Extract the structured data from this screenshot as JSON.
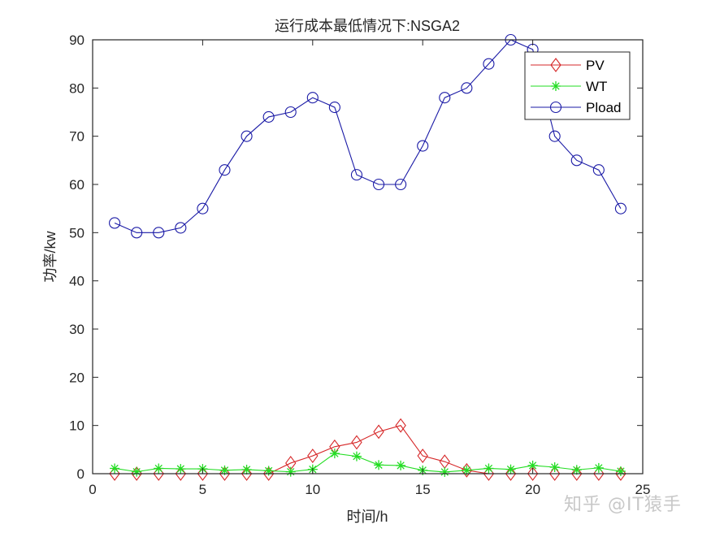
{
  "chart_data": {
    "type": "line",
    "title": "运行成本最低情况下:NSGA2",
    "xlabel": "时间/h",
    "ylabel": "功率/kw",
    "xlim": [
      0,
      25
    ],
    "ylim": [
      0,
      90
    ],
    "xticks": [
      0,
      5,
      10,
      15,
      20,
      25
    ],
    "yticks": [
      0,
      10,
      20,
      30,
      40,
      50,
      60,
      70,
      80,
      90
    ],
    "grid": false,
    "legend_position": "top-right (inside)",
    "x": [
      1,
      2,
      3,
      4,
      5,
      6,
      7,
      8,
      9,
      10,
      11,
      12,
      13,
      14,
      15,
      16,
      17,
      18,
      19,
      20,
      21,
      22,
      23,
      24
    ],
    "series": [
      {
        "name": "PV",
        "color": "#d62728",
        "marker": "diamond",
        "values": [
          0,
          0,
          0,
          0,
          0,
          0,
          0,
          0,
          2.2,
          3.7,
          5.6,
          6.5,
          8.7,
          10.0,
          3.7,
          2.5,
          0.7,
          0,
          0,
          0,
          0,
          0,
          0,
          0
        ]
      },
      {
        "name": "WT",
        "color": "#22dd22",
        "marker": "asterisk",
        "values": [
          1.1,
          0.4,
          1.1,
          1.0,
          1.0,
          0.7,
          0.85,
          0.6,
          0.4,
          0.9,
          4.2,
          3.6,
          1.8,
          1.7,
          0.7,
          0.35,
          0.7,
          1.1,
          0.9,
          1.7,
          1.35,
          0.8,
          1.2,
          0.5
        ]
      },
      {
        "name": "Pload",
        "color": "#1a1aa6",
        "marker": "circle",
        "values": [
          52,
          50,
          50,
          51,
          55,
          63,
          70,
          74,
          75,
          78,
          76,
          62,
          60,
          60,
          68,
          78,
          80,
          85,
          90,
          88,
          70,
          65,
          63,
          55
        ]
      }
    ]
  },
  "watermark": "知乎 @IT猿手"
}
